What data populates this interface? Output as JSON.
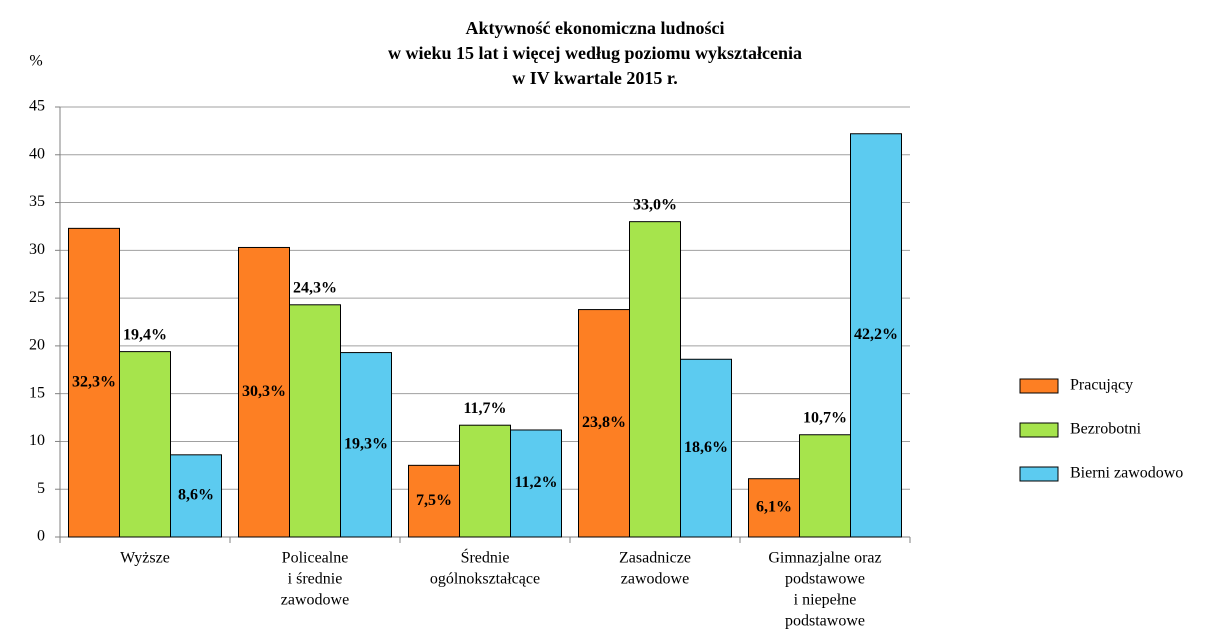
{
  "chart_data": {
    "type": "bar",
    "title": [
      "Aktywność ekonomiczna ludności",
      "w wieku 15 lat i więcej według poziomu wykształcenia",
      "w IV kwartale 2015 r."
    ],
    "y_label": "%",
    "categories": [
      [
        "Wyższe"
      ],
      [
        "Policealne",
        "i średnie",
        "zawodowe"
      ],
      [
        "Średnie",
        "ogólnokształcące"
      ],
      [
        "Zasadnicze",
        "zawodowe"
      ],
      [
        "Gimnazjalne oraz",
        "podstawowe",
        "i niepełne",
        "podstawowe"
      ]
    ],
    "series": [
      {
        "name": "Pracujący",
        "color": "#fd7f23",
        "label_position": "center",
        "values": [
          32.3,
          30.3,
          7.5,
          23.8,
          6.1
        ],
        "value_labels": [
          "32,3%",
          "30,3%",
          "7,5%",
          "23,8%",
          "6,1%"
        ]
      },
      {
        "name": "Bezrobotni",
        "color": "#a6e44c",
        "label_position": "top",
        "values": [
          19.4,
          24.3,
          11.7,
          33.0,
          10.7
        ],
        "value_labels": [
          "19,4%",
          "24,3%",
          "11,7%",
          "33,0%",
          "10,7%"
        ]
      },
      {
        "name": "Bierni zawodowo",
        "color": "#5ccbf0",
        "label_position": "center",
        "values": [
          8.6,
          19.3,
          11.2,
          18.6,
          42.2
        ],
        "value_labels": [
          "8,6%",
          "19,3%",
          "11,2%",
          "18,6%",
          "42,2%"
        ]
      }
    ],
    "ylim": [
      0,
      45
    ],
    "yticks": [
      0,
      5,
      10,
      15,
      20,
      25,
      30,
      35,
      40,
      45
    ],
    "grid": true,
    "legend": "right"
  }
}
